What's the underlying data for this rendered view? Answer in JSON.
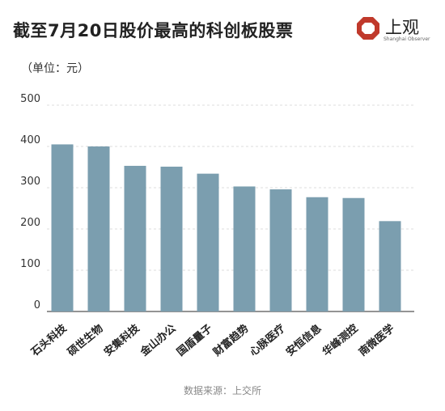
{
  "header": {
    "title": "截至7月20日股价最高的科创板股票",
    "brand_name": "上观",
    "brand_sub": "Shanghai Observer"
  },
  "unit_label": "（单位：元）",
  "source": "数据来源：上交所",
  "colors": {
    "bar": "#7b9eaf",
    "grid": "#dcdcdc",
    "axis": "#555555",
    "logo": "#c0392b"
  },
  "chart_data": {
    "type": "bar",
    "categories": [
      "石头科技",
      "硕世生物",
      "安集科技",
      "金山办公",
      "国盾量子",
      "财富趋势",
      "心脉医疗",
      "安恒信息",
      "华峰测控",
      "南微医学"
    ],
    "values": [
      405,
      400,
      353,
      351,
      334,
      303,
      296,
      277,
      275,
      219
    ],
    "ylim": [
      0,
      500
    ],
    "yticks": [
      0,
      100,
      200,
      300,
      400,
      500
    ],
    "grid": true,
    "xlabel": "",
    "ylabel": ""
  }
}
